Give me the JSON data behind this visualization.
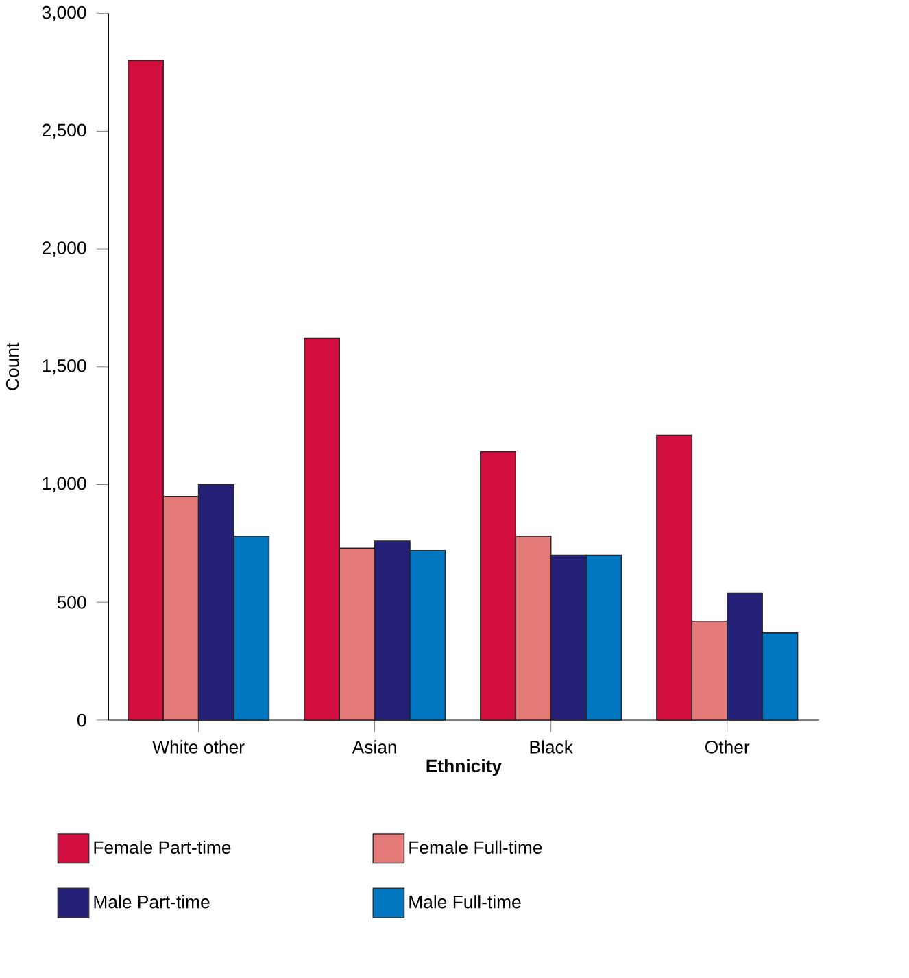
{
  "chart_data": {
    "type": "bar",
    "xlabel": "Ethnicity",
    "ylabel": "Count",
    "categories": [
      "White other",
      "Asian",
      "Black",
      "Other"
    ],
    "series": [
      {
        "name": "Female Part-time",
        "color": "#d30f40",
        "values": [
          2800,
          1620,
          1140,
          1210
        ]
      },
      {
        "name": "Female Full-time",
        "color": "#e47b79",
        "values": [
          950,
          730,
          780,
          420
        ]
      },
      {
        "name": "Male Part-time",
        "color": "#262178",
        "values": [
          1000,
          760,
          700,
          540
        ]
      },
      {
        "name": "Male Full-time",
        "color": "#0077c0",
        "values": [
          780,
          720,
          700,
          370
        ]
      }
    ],
    "ylim": [
      0,
      3000
    ],
    "yticks": [
      {
        "value": 0,
        "label": "0"
      },
      {
        "value": 500,
        "label": "500"
      },
      {
        "value": 1000,
        "label": "1,000"
      },
      {
        "value": 1500,
        "label": "1,500"
      },
      {
        "value": 2000,
        "label": "2,000"
      },
      {
        "value": 2500,
        "label": "2,500"
      },
      {
        "value": 3000,
        "label": "3,000"
      }
    ],
    "grid": false,
    "legend": "bottom"
  }
}
